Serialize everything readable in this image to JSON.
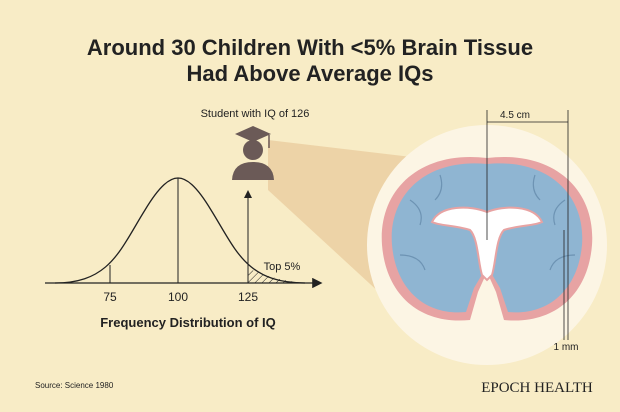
{
  "header": {
    "title_lines": [
      "Around 30 Children With <5% Brain Tissue",
      "Had Above Average IQs"
    ]
  },
  "student_label": "Student with IQ of 126",
  "distribution": {
    "ticks": [
      "75",
      "100",
      "125"
    ],
    "tail_label": "Top 5%",
    "caption": "Frequency Distribution of IQ"
  },
  "brain": {
    "width_label": "4.5 cm",
    "thickness_label": "1 mm"
  },
  "footer": {
    "source": "Source: Science 1980",
    "brand": "EPOCH HEALTH"
  }
}
